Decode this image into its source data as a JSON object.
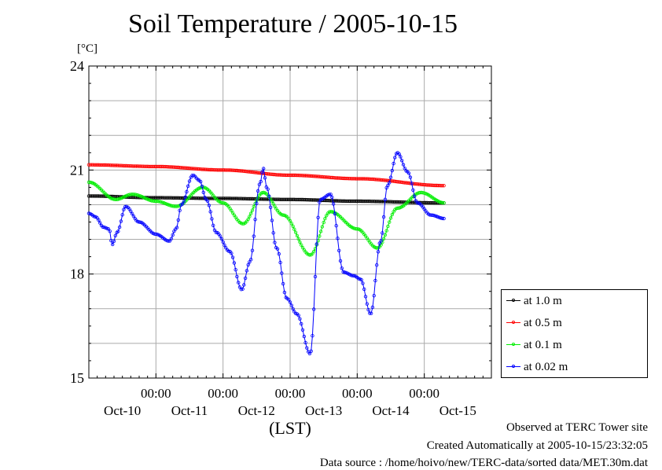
{
  "chart_data": {
    "type": "line",
    "title": "Soil Temperature / 2005-10-15",
    "ylabel": "[°C]",
    "xlabel": "(LST)",
    "ylim": [
      15,
      24
    ],
    "yticks": [
      15,
      18,
      21,
      24
    ],
    "xlim": [
      0.0,
      6.0
    ],
    "x_time_labels": [
      "00:00",
      "00:00",
      "00:00",
      "00:00",
      "00:00"
    ],
    "x_date_labels": [
      "Oct-10",
      "Oct-11",
      "Oct-12",
      "Oct-13",
      "Oct-14",
      "Oct-15"
    ],
    "grid": true,
    "legend_placement": "bottom-right outside",
    "series": [
      {
        "name": "at 1.0 m",
        "color": "#000000",
        "x": [
          0.0,
          1.0,
          2.0,
          3.0,
          4.0,
          5.3
        ],
        "y": [
          20.25,
          20.2,
          20.18,
          20.15,
          20.1,
          20.05
        ]
      },
      {
        "name": "at 0.5 m",
        "color": "#ff0000",
        "x": [
          0.0,
          1.0,
          2.0,
          3.0,
          4.0,
          5.3
        ],
        "y": [
          21.15,
          21.1,
          21.0,
          20.85,
          20.75,
          20.55
        ]
      },
      {
        "name": "at 0.1 m",
        "color": "#00ee00",
        "x": [
          0.0,
          0.4,
          0.65,
          1.0,
          1.3,
          1.7,
          2.0,
          2.3,
          2.6,
          2.9,
          3.3,
          3.6,
          4.0,
          4.3,
          4.6,
          4.95,
          5.3
        ],
        "y": [
          20.65,
          20.15,
          20.3,
          20.1,
          19.95,
          20.5,
          20.05,
          19.45,
          20.35,
          19.7,
          18.55,
          19.8,
          19.3,
          18.75,
          19.9,
          20.35,
          20.05
        ]
      },
      {
        "name": "at 0.02 m",
        "color": "#0000ff",
        "x": [
          0.0,
          0.1,
          0.22,
          0.3,
          0.35,
          0.42,
          0.55,
          0.75,
          1.0,
          1.2,
          1.3,
          1.38,
          1.55,
          1.65,
          1.75,
          1.9,
          2.1,
          2.28,
          2.4,
          2.55,
          2.6,
          2.65,
          2.8,
          2.95,
          3.1,
          3.3,
          3.45,
          3.6,
          3.8,
          3.95,
          4.05,
          4.2,
          4.35,
          4.45,
          4.6,
          4.75,
          4.9,
          5.1,
          5.3
        ],
        "y": [
          19.75,
          19.65,
          19.35,
          19.3,
          18.85,
          19.2,
          19.95,
          19.5,
          19.15,
          18.95,
          19.3,
          20.0,
          20.85,
          20.7,
          20.15,
          19.2,
          18.65,
          17.55,
          18.35,
          20.6,
          21.05,
          20.5,
          18.75,
          17.3,
          16.85,
          15.7,
          20.15,
          20.3,
          18.05,
          17.95,
          17.85,
          16.85,
          18.95,
          20.55,
          21.5,
          20.95,
          20.05,
          19.7,
          19.6
        ]
      }
    ]
  },
  "notes": {
    "observed": "Observed at TERC Tower site",
    "created": "Created Automatically at 2005-10-15/23:32:05",
    "source": "Data source : /home/hoivo/new/TERC-data/sorted  data/MET.30m.dat"
  }
}
